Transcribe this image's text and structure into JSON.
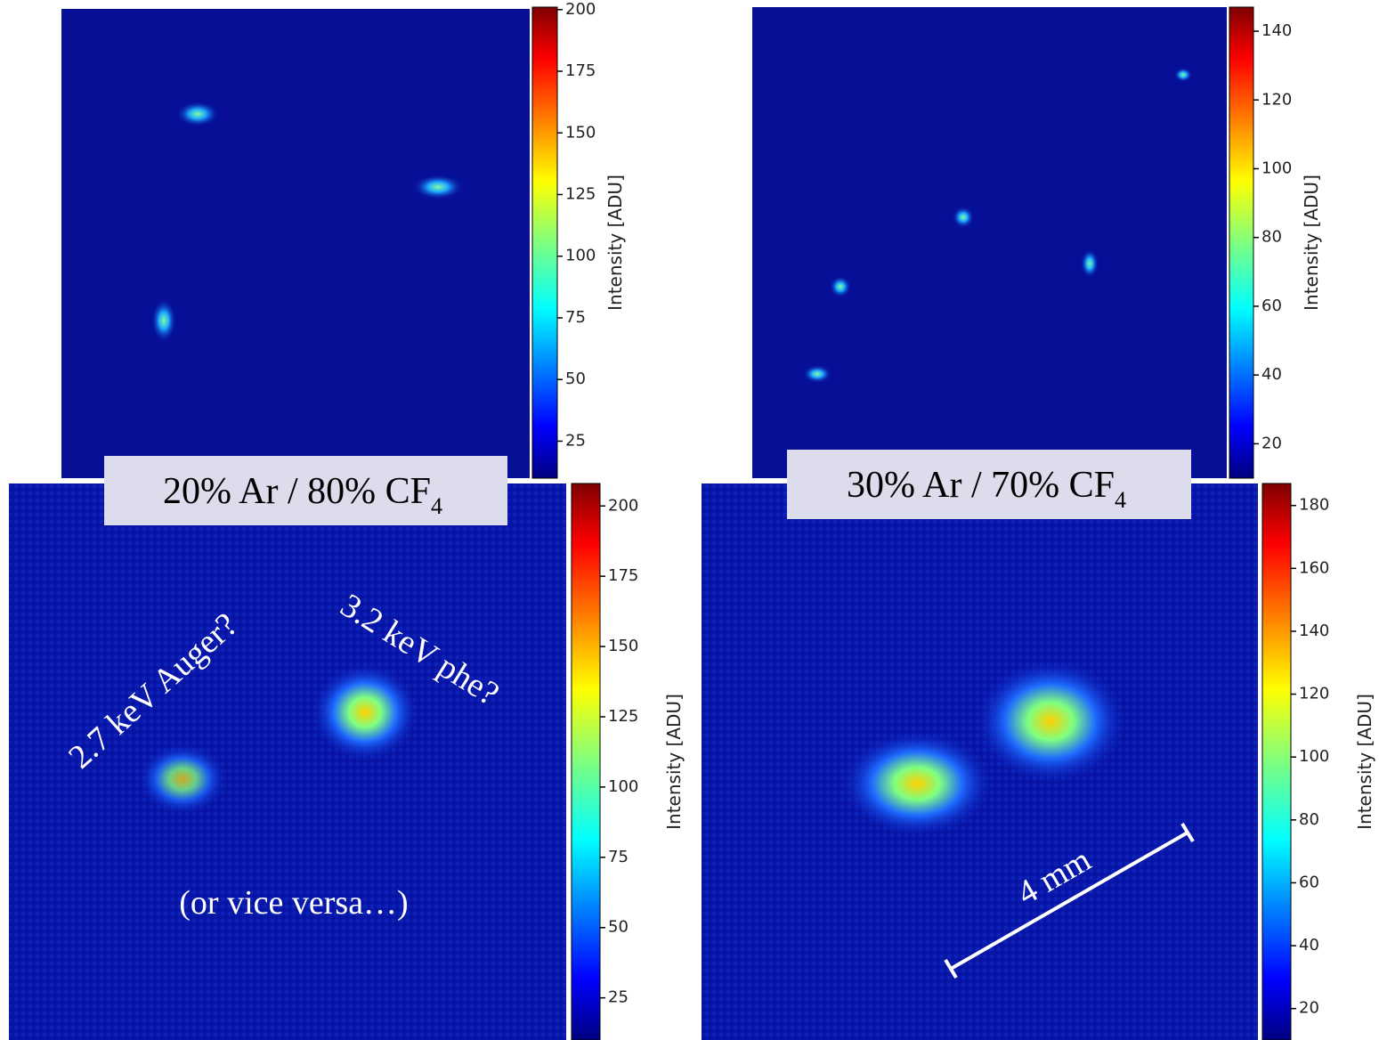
{
  "chart_data": [
    {
      "type": "image",
      "colorbar_label": "Intensity [ADU]",
      "colormap": "jet",
      "clim": [
        10,
        201
      ],
      "ticks": [
        25,
        50,
        75,
        100,
        125,
        150,
        175,
        200
      ]
    },
    {
      "type": "image",
      "colorbar_label": "Intensity [ADU]",
      "colormap": "jet",
      "clim": [
        10,
        147
      ],
      "ticks": [
        20,
        40,
        60,
        80,
        100,
        120,
        140
      ]
    },
    {
      "type": "image",
      "colorbar_label": "Intensity [ADU]",
      "colormap": "jet",
      "clim": [
        10,
        208
      ],
      "ticks": [
        25,
        50,
        75,
        100,
        125,
        150,
        175,
        200
      ]
    },
    {
      "type": "image",
      "colorbar_label": "Intensity [ADU]",
      "colormap": "jet",
      "clim": [
        10,
        187
      ],
      "ticks": [
        20,
        40,
        60,
        80,
        100,
        120,
        140,
        160,
        180
      ]
    }
  ],
  "labels": [
    {
      "text": "20% Ar / 80% CF",
      "subscript": "4"
    },
    {
      "text": "30% Ar / 70% CF",
      "subscript": "4"
    }
  ],
  "annotations": [
    "2.7 keV Auger?",
    "3.2 keV phe?",
    "(or vice versa…)",
    "4 mm"
  ]
}
